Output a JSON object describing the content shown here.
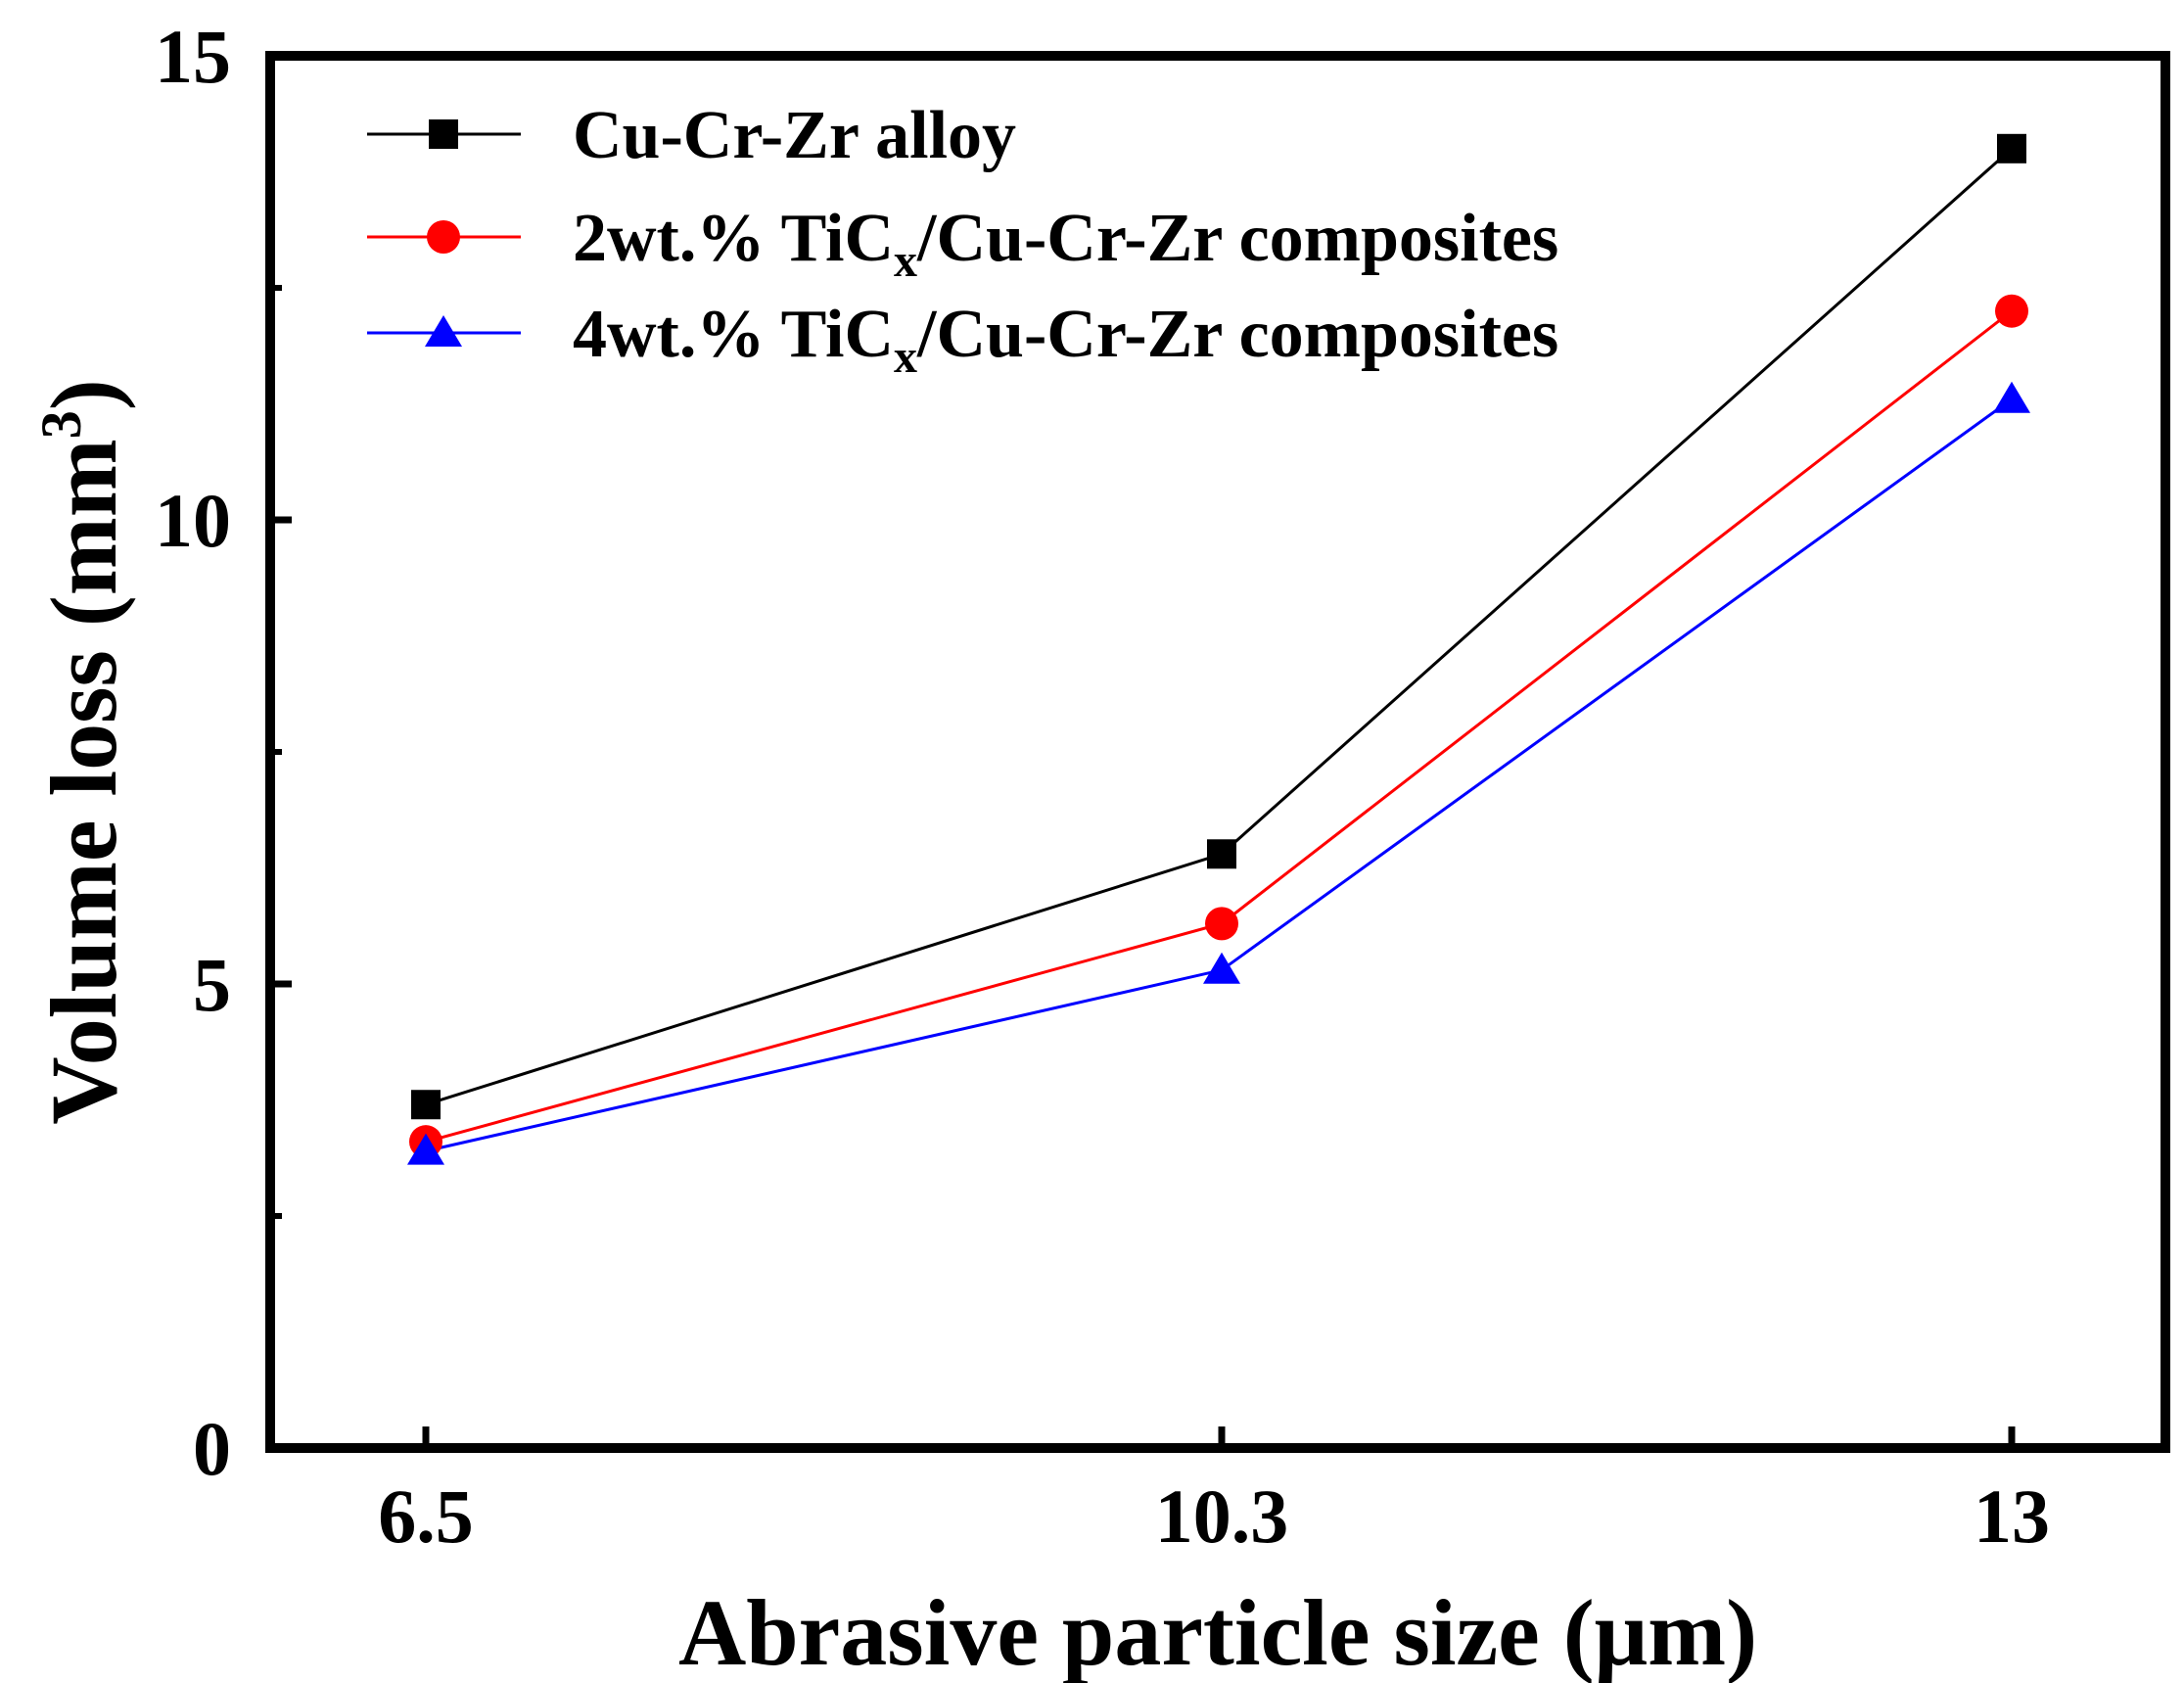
{
  "chart_data": {
    "type": "line",
    "title": "",
    "xlabel": "Abrasive particle size (μm)",
    "ylabel_main": "Volume loss (mm",
    "ylabel_sup": "3",
    "ylabel_end": ")",
    "categories": [
      "6.5",
      "10.3",
      "13"
    ],
    "ylim": [
      0,
      15
    ],
    "yticks": [
      0,
      5,
      10,
      15
    ],
    "yticks_labels": [
      "0",
      "5",
      "10",
      "15"
    ],
    "ytick_minor": [
      2.5,
      7.5,
      12.5
    ],
    "legend_position": "top-left",
    "series": [
      {
        "name": "Cu-Cr-Zr alloy",
        "name_parts": [
          "Cu-Cr-Zr alloy",
          "",
          ""
        ],
        "color": "#000000",
        "marker": "square",
        "values": [
          3.7,
          6.4,
          14.0
        ]
      },
      {
        "name": "2wt.% TiCx/Cu-Cr-Zr composites",
        "name_parts": [
          "2wt.% TiC",
          "x",
          "/Cu-Cr-Zr composites"
        ],
        "color": "#ff0000",
        "marker": "circle",
        "values": [
          3.3,
          5.65,
          12.25
        ]
      },
      {
        "name": "4wt.% TiCx/Cu-Cr-Zr composites",
        "name_parts": [
          "4wt.% TiC",
          "x",
          "/Cu-Cr-Zr composites"
        ],
        "color": "#0000ff",
        "marker": "triangle",
        "values": [
          3.2,
          5.15,
          11.3
        ]
      }
    ]
  }
}
